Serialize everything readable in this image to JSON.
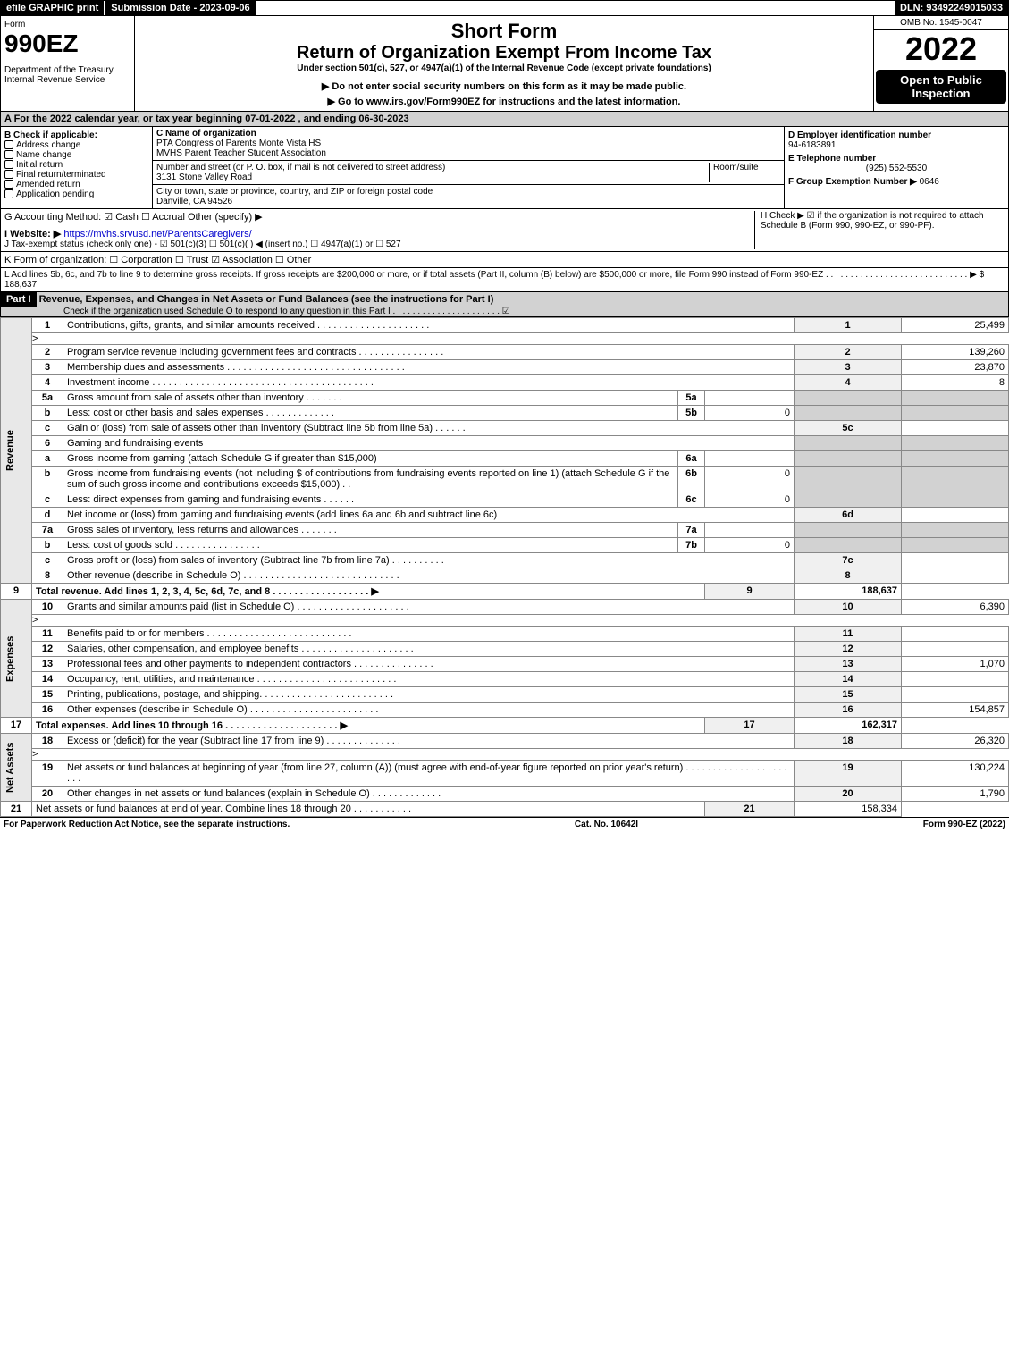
{
  "top": {
    "efile": "efile GRAPHIC print",
    "subdate": "Submission Date - 2023-09-06",
    "dln": "DLN: 93492249015033"
  },
  "header": {
    "form": "Form",
    "formno": "990EZ",
    "dept": "Department of the Treasury\nInternal Revenue Service",
    "short": "Short Form",
    "title": "Return of Organization Exempt From Income Tax",
    "under": "Under section 501(c), 527, or 4947(a)(1) of the Internal Revenue Code (except private foundations)",
    "warn1": "▶ Do not enter social security numbers on this form as it may be made public.",
    "warn2": "▶ Go to www.irs.gov/Form990EZ for instructions and the latest information.",
    "omb": "OMB No. 1545-0047",
    "year": "2022",
    "open": "Open to Public Inspection"
  },
  "A": "A  For the 2022 calendar year, or tax year beginning 07-01-2022 , and ending 06-30-2023",
  "B": {
    "label": "B  Check if applicable:",
    "opts": [
      "Address change",
      "Name change",
      "Initial return",
      "Final return/terminated",
      "Amended return",
      "Application pending"
    ]
  },
  "C": {
    "label": "C Name of organization",
    "name1": "PTA Congress of Parents Monte Vista HS",
    "name2": "MVHS Parent Teacher Student Association",
    "addr_label": "Number and street (or P. O. box, if mail is not delivered to street address)",
    "room": "Room/suite",
    "addr": "3131 Stone Valley Road",
    "city_label": "City or town, state or province, country, and ZIP or foreign postal code",
    "city": "Danville, CA  94526"
  },
  "D": {
    "label": "D Employer identification number",
    "val": "94-6183891"
  },
  "E": {
    "label": "E Telephone number",
    "val": "(925) 552-5530"
  },
  "F": {
    "label": "F Group Exemption Number  ▶",
    "val": "0646"
  },
  "G": "G Accounting Method:  ☑ Cash  ☐ Accrual   Other (specify) ▶",
  "H": "H   Check ▶ ☑ if the organization is not required to attach Schedule B (Form 990, 990-EZ, or 990-PF).",
  "I": {
    "label": "I Website: ▶",
    "url": "https://mvhs.srvusd.net/ParentsCaregivers/"
  },
  "J": "J Tax-exempt status (check only one) - ☑ 501(c)(3)  ☐ 501(c)(  ) ◀ (insert no.)  ☐ 4947(a)(1) or  ☐ 527",
  "K": "K Form of organization:  ☐ Corporation  ☐ Trust  ☑ Association  ☐ Other",
  "L": "L Add lines 5b, 6c, and 7b to line 9 to determine gross receipts. If gross receipts are $200,000 or more, or if total assets (Part II, column (B) below) are $500,000 or more, file Form 990 instead of Form 990-EZ . . . . . . . . . . . . . . . . . . . . . . . . . . . . . ▶ $ 188,637",
  "part1": {
    "title": "Part I",
    "heading": "Revenue, Expenses, and Changes in Net Assets or Fund Balances (see the instructions for Part I)",
    "check": "Check if the organization used Schedule O to respond to any question in this Part I . . . . . . . . . . . . . . . . . . . . . . ☑"
  },
  "sections": {
    "rev": "Revenue",
    "exp": "Expenses",
    "net": "Net Assets"
  },
  "lines": {
    "1": {
      "txt": "Contributions, gifts, grants, and similar amounts received . . . . . . . . . . . . . . . . . . . . .",
      "amt": "25,499"
    },
    "2": {
      "txt": "Program service revenue including government fees and contracts . . . . . . . . . . . . . . . .",
      "amt": "139,260"
    },
    "3": {
      "txt": "Membership dues and assessments . . . . . . . . . . . . . . . . . . . . . . . . . . . . . . . . .",
      "amt": "23,870"
    },
    "4": {
      "txt": "Investment income . . . . . . . . . . . . . . . . . . . . . . . . . . . . . . . . . . . . . . . . .",
      "amt": "8"
    },
    "5a": {
      "txt": "Gross amount from sale of assets other than inventory . . . . . . .",
      "sub": ""
    },
    "5b": {
      "txt": "Less: cost or other basis and sales expenses . . . . . . . . . . . . .",
      "sub": "0"
    },
    "5c": {
      "txt": "Gain or (loss) from sale of assets other than inventory (Subtract line 5b from line 5a) . . . . . .",
      "amt": ""
    },
    "6": {
      "txt": "Gaming and fundraising events"
    },
    "6a": {
      "txt": "Gross income from gaming (attach Schedule G if greater than $15,000)",
      "sub": ""
    },
    "6b": {
      "txt": "Gross income from fundraising events (not including $                  of contributions from fundraising events reported on line 1) (attach Schedule G if the sum of such gross income and contributions exceeds $15,000)   . .",
      "sub": "0"
    },
    "6c": {
      "txt": "Less: direct expenses from gaming and fundraising events . . . . . .",
      "sub": "0"
    },
    "6d": {
      "txt": "Net income or (loss) from gaming and fundraising events (add lines 6a and 6b and subtract line 6c)",
      "amt": ""
    },
    "7a": {
      "txt": "Gross sales of inventory, less returns and allowances . . . . . . .",
      "sub": ""
    },
    "7b": {
      "txt": "Less: cost of goods sold         . . . . . . . . . . . . . . . .",
      "sub": "0"
    },
    "7c": {
      "txt": "Gross profit or (loss) from sales of inventory (Subtract line 7b from line 7a) . . . . . . . . . .",
      "amt": ""
    },
    "8": {
      "txt": "Other revenue (describe in Schedule O) . . . . . . . . . . . . . . . . . . . . . . . . . . . . .",
      "amt": ""
    },
    "9": {
      "txt": "Total revenue. Add lines 1, 2, 3, 4, 5c, 6d, 7c, and 8  . . . . . . . . . . . . . . . . . . ▶",
      "amt": "188,637"
    },
    "10": {
      "txt": "Grants and similar amounts paid (list in Schedule O) . . . . . . . . . . . . . . . . . . . . .",
      "amt": "6,390"
    },
    "11": {
      "txt": "Benefits paid to or for members       . . . . . . . . . . . . . . . . . . . . . . . . . . .",
      "amt": ""
    },
    "12": {
      "txt": "Salaries, other compensation, and employee benefits . . . . . . . . . . . . . . . . . . . . .",
      "amt": ""
    },
    "13": {
      "txt": "Professional fees and other payments to independent contractors . . . . . . . . . . . . . . .",
      "amt": "1,070"
    },
    "14": {
      "txt": "Occupancy, rent, utilities, and maintenance . . . . . . . . . . . . . . . . . . . . . . . . . .",
      "amt": ""
    },
    "15": {
      "txt": "Printing, publications, postage, and shipping. . . . . . . . . . . . . . . . . . . . . . . . .",
      "amt": ""
    },
    "16": {
      "txt": "Other expenses (describe in Schedule O)     . . . . . . . . . . . . . . . . . . . . . . . .",
      "amt": "154,857"
    },
    "17": {
      "txt": "Total expenses. Add lines 10 through 16     . . . . . . . . . . . . . . . . . . . . . ▶",
      "amt": "162,317"
    },
    "18": {
      "txt": "Excess or (deficit) for the year (Subtract line 17 from line 9)       . . . . . . . . . . . . . .",
      "amt": "26,320"
    },
    "19": {
      "txt": "Net assets or fund balances at beginning of year (from line 27, column (A)) (must agree with end-of-year figure reported on prior year's return) . . . . . . . . . . . . . . . . . . . . . .",
      "amt": "130,224"
    },
    "20": {
      "txt": "Other changes in net assets or fund balances (explain in Schedule O) . . . . . . . . . . . . .",
      "amt": "1,790"
    },
    "21": {
      "txt": "Net assets or fund balances at end of year. Combine lines 18 through 20 . . . . . . . . . . .",
      "amt": "158,334"
    }
  },
  "footer": {
    "left": "For Paperwork Reduction Act Notice, see the separate instructions.",
    "mid": "Cat. No. 10642I",
    "right": "Form 990-EZ (2022)"
  }
}
